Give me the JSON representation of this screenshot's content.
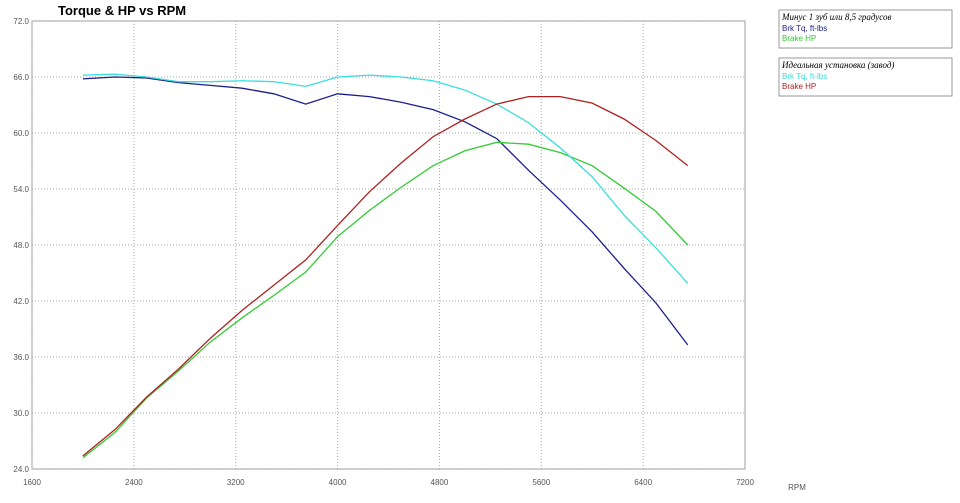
{
  "chart_data": {
    "type": "line",
    "title": "Torque & HP vs RPM",
    "x_label": "RPM",
    "x": [
      2000,
      2250,
      2500,
      2750,
      3000,
      3250,
      3500,
      3750,
      4000,
      4250,
      4500,
      4750,
      5000,
      5250,
      5500,
      5750,
      6000,
      6250,
      6500,
      6750
    ],
    "xlim": [
      1600,
      7200
    ],
    "xticks": [
      1600,
      2400,
      3200,
      4000,
      4800,
      5600,
      6400,
      7200
    ],
    "ylim": [
      24,
      72
    ],
    "yticks": [
      {
        "value": 24,
        "label": "24.0"
      },
      {
        "value": 30,
        "label": "30.0"
      },
      {
        "value": 36,
        "label": "36.0"
      },
      {
        "value": 42,
        "label": "42.0"
      },
      {
        "value": 48,
        "label": "48.0"
      },
      {
        "value": 54,
        "label": "54.0"
      },
      {
        "value": 60,
        "label": "60.0"
      },
      {
        "value": 66,
        "label": "66.0"
      },
      {
        "value": 72,
        "label": "72.0"
      }
    ],
    "grid": true,
    "series_groups": [
      {
        "title": "Минус 1 зуб или 8,5 градусов",
        "series": [
          {
            "name": "Brk Tq, ft-lbs",
            "color": "#1c1c8a",
            "values": [
              65.8,
              66.0,
              65.9,
              65.4,
              65.1,
              64.8,
              64.2,
              63.1,
              64.2,
              63.9,
              63.3,
              62.5,
              61.2,
              59.4,
              56.0,
              52.8,
              49.4,
              45.5,
              41.8,
              37.3
            ]
          },
          {
            "name": "Brake HP",
            "color": "#33cc33",
            "values": [
              25.2,
              27.9,
              31.6,
              34.5,
              37.6,
              40.2,
              42.6,
              45.1,
              48.9,
              51.7,
              54.2,
              56.5,
              58.1,
              59.0,
              58.8,
              57.9,
              56.5,
              54.1,
              51.6,
              48.0
            ]
          }
        ]
      },
      {
        "title": "Идеальная установка (завод)",
        "series": [
          {
            "name": "Brk Tq, ft-lbs",
            "color": "#3adede",
            "values": [
              66.2,
              66.3,
              66.0,
              65.5,
              65.5,
              65.6,
              65.5,
              65.0,
              66.0,
              66.2,
              66.0,
              65.6,
              64.6,
              63.1,
              61.1,
              58.4,
              55.3,
              51.2,
              47.7,
              43.9
            ]
          },
          {
            "name": "Brake HP",
            "color": "#b02020",
            "values": [
              25.4,
              28.2,
              31.7,
              34.7,
              38.0,
              41.0,
              43.7,
              46.4,
              50.1,
              53.7,
              56.8,
              59.6,
              61.5,
              63.1,
              63.9,
              63.9,
              63.2,
              61.5,
              59.2,
              56.5
            ]
          }
        ]
      }
    ]
  }
}
